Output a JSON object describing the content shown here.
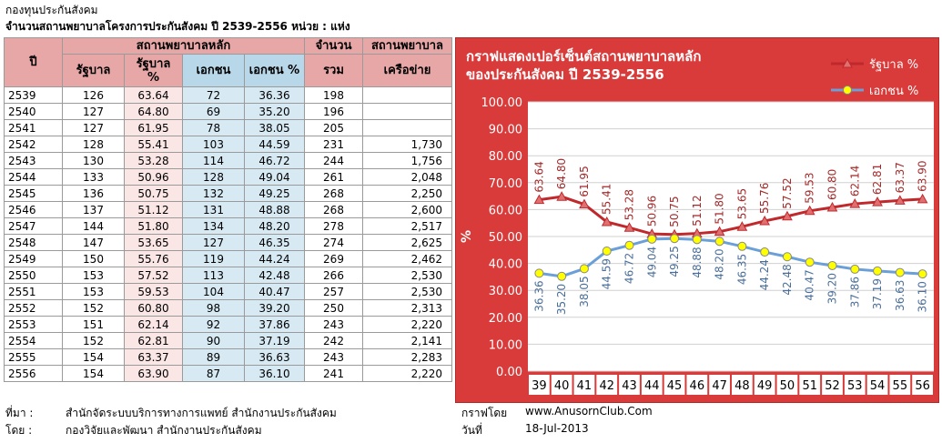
{
  "header": {
    "line1": "กองทุนประกันสังคม",
    "line2": "จำนวนสถานพยาบาลโครงการประกันสังคม ปี 2539-2556 หน่วย : แห่ง"
  },
  "table": {
    "h_year": "ปี",
    "h_main": "สถานพยาบาลหลัก",
    "h_gov": "รัฐบาล",
    "h_gov_pct": "รัฐบาล %",
    "h_priv": "เอกชน",
    "h_priv_pct": "เอกชน %",
    "h_count": "จำนวน",
    "h_total": "รวม",
    "h_net": "สถานพยาบาล",
    "h_net2": "เครือข่าย",
    "rows": [
      [
        "2539",
        "126",
        "63.64",
        "72",
        "36.36",
        "198",
        ""
      ],
      [
        "2540",
        "127",
        "64.80",
        "69",
        "35.20",
        "196",
        ""
      ],
      [
        "2541",
        "127",
        "61.95",
        "78",
        "38.05",
        "205",
        ""
      ],
      [
        "2542",
        "128",
        "55.41",
        "103",
        "44.59",
        "231",
        "1,730"
      ],
      [
        "2543",
        "130",
        "53.28",
        "114",
        "46.72",
        "244",
        "1,756"
      ],
      [
        "2544",
        "133",
        "50.96",
        "128",
        "49.04",
        "261",
        "2,048"
      ],
      [
        "2545",
        "136",
        "50.75",
        "132",
        "49.25",
        "268",
        "2,250"
      ],
      [
        "2546",
        "137",
        "51.12",
        "131",
        "48.88",
        "268",
        "2,600"
      ],
      [
        "2547",
        "144",
        "51.80",
        "134",
        "48.20",
        "278",
        "2,517"
      ],
      [
        "2548",
        "147",
        "53.65",
        "127",
        "46.35",
        "274",
        "2,625"
      ],
      [
        "2549",
        "150",
        "55.76",
        "119",
        "44.24",
        "269",
        "2,462"
      ],
      [
        "2550",
        "153",
        "57.52",
        "113",
        "42.48",
        "266",
        "2,530"
      ],
      [
        "2551",
        "153",
        "59.53",
        "104",
        "40.47",
        "257",
        "2,530"
      ],
      [
        "2552",
        "152",
        "60.80",
        "98",
        "39.20",
        "250",
        "2,313"
      ],
      [
        "2553",
        "151",
        "62.14",
        "92",
        "37.86",
        "243",
        "2,220"
      ],
      [
        "2554",
        "152",
        "62.81",
        "90",
        "37.19",
        "242",
        "2,141"
      ],
      [
        "2555",
        "154",
        "63.37",
        "89",
        "36.63",
        "243",
        "2,283"
      ],
      [
        "2556",
        "154",
        "63.90",
        "87",
        "36.10",
        "241",
        "2,220"
      ]
    ]
  },
  "footer": {
    "src_label": "ที่มา :",
    "src_value": "สำนักจัดระบบบริการทางการแพทย์ สำนักงานประกันสังคม",
    "by_label": "โดย :",
    "by_value": "กองวิจัยและพัฒนา สำนักงานประกันสังคม",
    "graph_label": "กราฟโดย",
    "graph_value": "www.AnusornClub.Com",
    "date_label": "วันที่",
    "date_value": "18-Jul-2013"
  },
  "colors": {
    "chart_bg": "#d93a3a",
    "plot_bg": "#ffffff",
    "gov_line": "#c0282c",
    "gov_marker": "#e07070",
    "priv_line": "#6a9fd8",
    "priv_marker": "#ffff00"
  },
  "chart_data": {
    "type": "line",
    "title": "กราฟแสดงเปอร์เซ็นต์สถานพยาบาลหลัก ของประกันสังคม ปี 2539-2556",
    "title_line1": "กราฟแสดงเปอร์เซ็นต์สถานพยาบาลหลัก",
    "title_line2": "ของประกันสังคม ปี 2539-2556",
    "ylabel": "%",
    "xlabel": "",
    "categories": [
      "39",
      "40",
      "41",
      "42",
      "43",
      "44",
      "45",
      "46",
      "47",
      "48",
      "49",
      "50",
      "51",
      "52",
      "53",
      "54",
      "55",
      "56"
    ],
    "ylim": [
      0,
      100
    ],
    "yticks": [
      "0.00",
      "10.00",
      "20.00",
      "30.00",
      "40.00",
      "50.00",
      "60.00",
      "70.00",
      "80.00",
      "90.00",
      "100.00"
    ],
    "legend_position": "top-right",
    "grid": true,
    "series": [
      {
        "name": "รัฐบาล %",
        "values": [
          63.64,
          64.8,
          61.95,
          55.41,
          53.28,
          50.96,
          50.75,
          51.12,
          51.8,
          53.65,
          55.76,
          57.52,
          59.53,
          60.8,
          62.14,
          62.81,
          63.37,
          63.9
        ],
        "labels": [
          "63.64",
          "64.80",
          "61.95",
          "55.41",
          "53.28",
          "50.96",
          "50.75",
          "51.12",
          "51.80",
          "53.65",
          "55.76",
          "57.52",
          "59.53",
          "60.80",
          "62.14",
          "62.81",
          "63.37",
          "63.90"
        ]
      },
      {
        "name": "เอกชน %",
        "values": [
          36.36,
          35.2,
          38.05,
          44.59,
          46.72,
          49.04,
          49.25,
          48.88,
          48.2,
          46.35,
          44.24,
          42.48,
          40.47,
          39.2,
          37.86,
          37.19,
          36.63,
          36.1
        ],
        "labels": [
          "36.36",
          "35.20",
          "38.05",
          "44.59",
          "46.72",
          "49.04",
          "49.25",
          "48.88",
          "48.20",
          "46.35",
          "44.24",
          "42.48",
          "40.47",
          "39.20",
          "37.86",
          "37.19",
          "36.63",
          "36.10"
        ]
      }
    ]
  }
}
